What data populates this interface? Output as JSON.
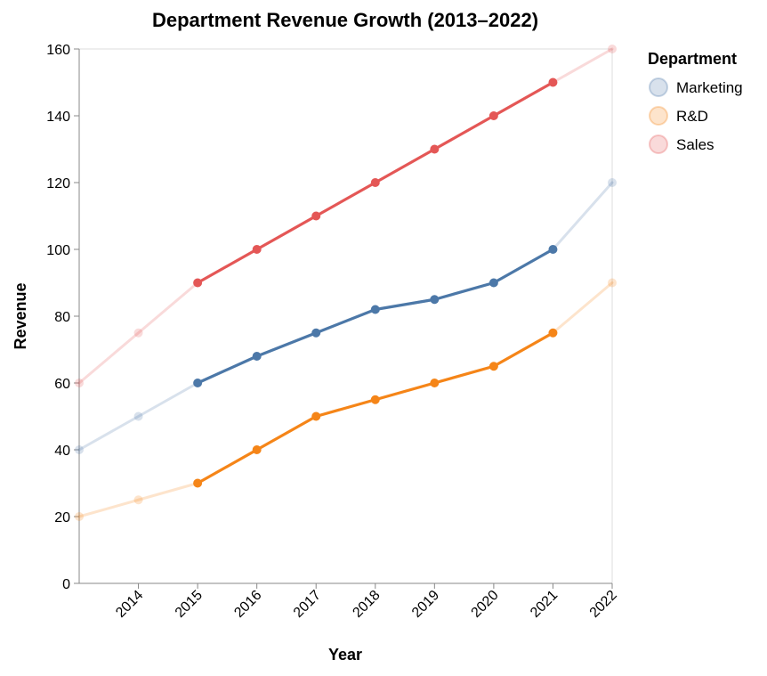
{
  "chart_data": {
    "type": "line",
    "title": "Department Revenue Growth (2013–2022)",
    "xlabel": "Year",
    "ylabel": "Revenue",
    "x": [
      2013,
      2014,
      2015,
      2016,
      2017,
      2018,
      2019,
      2020,
      2021,
      2022
    ],
    "x_tick_labels": [
      "2014",
      "2015",
      "2016",
      "2017",
      "2018",
      "2019",
      "2020",
      "2021",
      "2022"
    ],
    "x_tick_values": [
      2014,
      2015,
      2016,
      2017,
      2018,
      2019,
      2020,
      2021,
      2022
    ],
    "ylim": [
      0,
      160
    ],
    "y_ticks": [
      0,
      20,
      40,
      60,
      80,
      100,
      120,
      140,
      160
    ],
    "grid": false,
    "legend": {
      "title": "Department",
      "position": "top-right"
    },
    "highlight_range": [
      2015,
      2021
    ],
    "series": [
      {
        "name": "Marketing",
        "color": "#4c78a8",
        "values": [
          40,
          50,
          60,
          68,
          75,
          82,
          85,
          90,
          100,
          120
        ]
      },
      {
        "name": "R&D",
        "color": "#f58518",
        "values": [
          20,
          25,
          30,
          40,
          50,
          55,
          60,
          65,
          75,
          90
        ]
      },
      {
        "name": "Sales",
        "color": "#e45756",
        "values": [
          60,
          75,
          90,
          100,
          110,
          120,
          130,
          140,
          150,
          160
        ]
      }
    ]
  }
}
